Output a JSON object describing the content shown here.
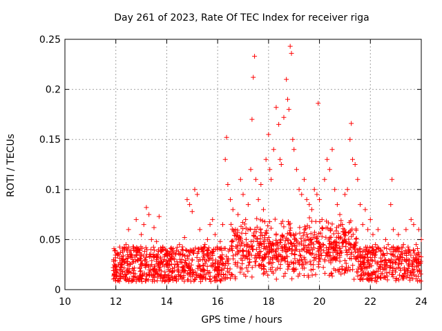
{
  "chart_data": {
    "type": "scatter",
    "title": "Day 261 of 2023, Rate Of TEC Index for receiver riga",
    "xlabel": "GPS time / hours",
    "ylabel": "ROTI / TECUs",
    "xlim": [
      10,
      24
    ],
    "ylim": [
      0,
      0.25
    ],
    "x_ticks": [
      "10",
      "12",
      "14",
      "16",
      "18",
      "20",
      "22",
      "24"
    ],
    "y_ticks": [
      "0",
      "0.05",
      "0.1",
      "0.15",
      "0.2",
      "0.25"
    ],
    "grid": true,
    "marker": "+",
    "color": "#ff0000",
    "series": [
      {
        "points": [
          [
            11.9,
            0.022
          ],
          [
            12.0,
            0.018
          ],
          [
            12.1,
            0.025
          ],
          [
            12.2,
            0.02
          ],
          [
            12.3,
            0.03
          ],
          [
            12.4,
            0.045
          ],
          [
            12.5,
            0.06
          ],
          [
            12.6,
            0.035
          ],
          [
            12.7,
            0.028
          ],
          [
            12.8,
            0.07
          ],
          [
            12.9,
            0.04
          ],
          [
            13.0,
            0.055
          ],
          [
            13.1,
            0.065
          ],
          [
            13.2,
            0.082
          ],
          [
            13.3,
            0.075
          ],
          [
            13.4,
            0.05
          ],
          [
            13.5,
            0.062
          ],
          [
            13.6,
            0.048
          ],
          [
            13.7,
            0.073
          ],
          [
            13.8,
            0.038
          ],
          [
            13.9,
            0.03
          ],
          [
            14.0,
            0.025
          ],
          [
            14.1,
            0.035
          ],
          [
            14.2,
            0.04
          ],
          [
            14.3,
            0.022
          ],
          [
            14.4,
            0.028
          ],
          [
            14.5,
            0.045
          ],
          [
            14.6,
            0.03
          ],
          [
            14.7,
            0.052
          ],
          [
            14.8,
            0.09
          ],
          [
            14.9,
            0.085
          ],
          [
            15.0,
            0.078
          ],
          [
            15.1,
            0.1
          ],
          [
            15.2,
            0.095
          ],
          [
            15.3,
            0.06
          ],
          [
            15.4,
            0.04
          ],
          [
            15.5,
            0.045
          ],
          [
            15.6,
            0.05
          ],
          [
            15.7,
            0.065
          ],
          [
            15.8,
            0.07
          ],
          [
            15.9,
            0.055
          ],
          [
            16.0,
            0.04
          ],
          [
            16.1,
            0.048
          ],
          [
            16.2,
            0.065
          ],
          [
            16.3,
            0.13
          ],
          [
            16.35,
            0.152
          ],
          [
            16.4,
            0.105
          ],
          [
            16.5,
            0.09
          ],
          [
            16.6,
            0.08
          ],
          [
            16.7,
            0.06
          ],
          [
            16.8,
            0.075
          ],
          [
            16.9,
            0.11
          ],
          [
            17.0,
            0.095
          ],
          [
            17.1,
            0.07
          ],
          [
            17.2,
            0.085
          ],
          [
            17.3,
            0.12
          ],
          [
            17.35,
            0.17
          ],
          [
            17.4,
            0.212
          ],
          [
            17.45,
            0.233
          ],
          [
            17.5,
            0.11
          ],
          [
            17.6,
            0.09
          ],
          [
            17.7,
            0.105
          ],
          [
            17.8,
            0.08
          ],
          [
            17.9,
            0.13
          ],
          [
            18.0,
            0.155
          ],
          [
            18.05,
            0.12
          ],
          [
            18.1,
            0.11
          ],
          [
            18.2,
            0.14
          ],
          [
            18.3,
            0.182
          ],
          [
            18.4,
            0.165
          ],
          [
            18.45,
            0.13
          ],
          [
            18.5,
            0.125
          ],
          [
            18.6,
            0.172
          ],
          [
            18.7,
            0.21
          ],
          [
            18.75,
            0.19
          ],
          [
            18.8,
            0.18
          ],
          [
            18.85,
            0.243
          ],
          [
            18.9,
            0.236
          ],
          [
            18.95,
            0.15
          ],
          [
            19.0,
            0.14
          ],
          [
            19.1,
            0.12
          ],
          [
            19.2,
            0.1
          ],
          [
            19.3,
            0.095
          ],
          [
            19.4,
            0.11
          ],
          [
            19.5,
            0.09
          ],
          [
            19.6,
            0.085
          ],
          [
            19.7,
            0.08
          ],
          [
            19.8,
            0.1
          ],
          [
            19.9,
            0.095
          ],
          [
            19.95,
            0.186
          ],
          [
            20.0,
            0.09
          ],
          [
            20.1,
            0.07
          ],
          [
            20.2,
            0.11
          ],
          [
            20.3,
            0.13
          ],
          [
            20.4,
            0.12
          ],
          [
            20.5,
            0.14
          ],
          [
            20.6,
            0.1
          ],
          [
            20.7,
            0.085
          ],
          [
            20.8,
            0.075
          ],
          [
            20.9,
            0.065
          ],
          [
            21.0,
            0.095
          ],
          [
            21.1,
            0.1
          ],
          [
            21.2,
            0.15
          ],
          [
            21.25,
            0.166
          ],
          [
            21.3,
            0.13
          ],
          [
            21.4,
            0.125
          ],
          [
            21.5,
            0.11
          ],
          [
            21.6,
            0.085
          ],
          [
            21.7,
            0.065
          ],
          [
            21.8,
            0.08
          ],
          [
            21.9,
            0.06
          ],
          [
            22.0,
            0.07
          ],
          [
            22.1,
            0.055
          ],
          [
            22.2,
            0.045
          ],
          [
            22.3,
            0.06
          ],
          [
            22.4,
            0.04
          ],
          [
            22.5,
            0.035
          ],
          [
            22.6,
            0.05
          ],
          [
            22.7,
            0.045
          ],
          [
            22.8,
            0.085
          ],
          [
            22.85,
            0.11
          ],
          [
            22.9,
            0.06
          ],
          [
            23.0,
            0.04
          ],
          [
            23.1,
            0.055
          ],
          [
            23.2,
            0.035
          ],
          [
            23.3,
            0.045
          ],
          [
            23.4,
            0.06
          ],
          [
            23.5,
            0.04
          ],
          [
            23.6,
            0.07
          ],
          [
            23.7,
            0.065
          ],
          [
            23.8,
            0.045
          ],
          [
            23.9,
            0.06
          ],
          [
            24.0,
            0.05
          ]
        ]
      }
    ]
  }
}
